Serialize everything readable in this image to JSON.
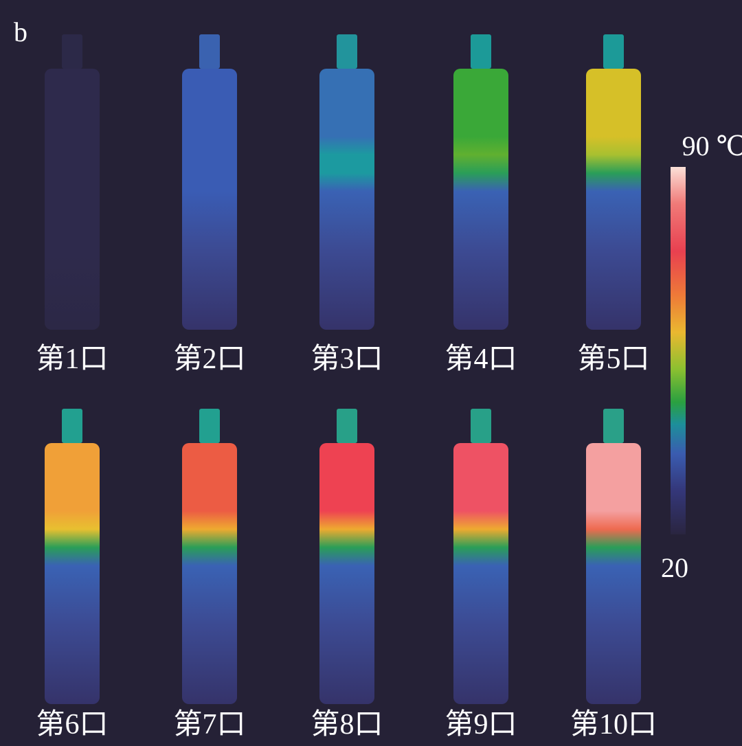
{
  "panel_label": "b",
  "images": [
    {
      "label": "第1口"
    },
    {
      "label": "第2口"
    },
    {
      "label": "第3口"
    },
    {
      "label": "第4口"
    },
    {
      "label": "第5口"
    },
    {
      "label": "第6口"
    },
    {
      "label": "第7口"
    },
    {
      "label": "第8口"
    },
    {
      "label": "第9口"
    },
    {
      "label": "第10口"
    }
  ],
  "colorbar": {
    "max_label": "90 ℃",
    "min_label": "20"
  }
}
